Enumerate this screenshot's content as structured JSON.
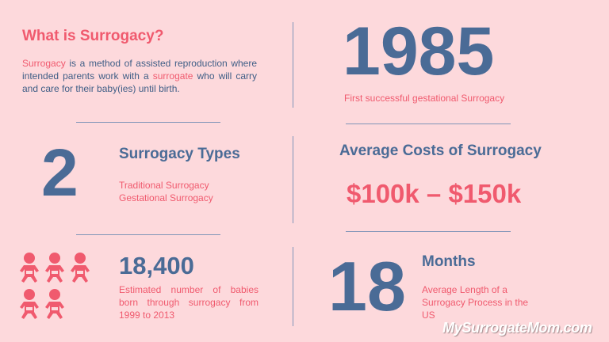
{
  "surrogacy": {
    "heading": "What is Surrogacy?",
    "lead_word": "Surrogacy",
    "text_part1": " is a method of assisted reproduction where intended parents work with a ",
    "highlight_word": "surrogate",
    "text_part2": " who will carry and care for their baby(ies) until birth."
  },
  "year_stat": {
    "value": "1985",
    "caption": "First successful gestational Surrogacy"
  },
  "types_stat": {
    "value": "2",
    "heading": "Surrogacy Types",
    "items": [
      "Traditional Surrogacy",
      "Gestational Surrogacy"
    ]
  },
  "cost_stat": {
    "heading": "Average Costs of Surrogacy",
    "value": "$100k – $150k"
  },
  "babies_stat": {
    "value": "18,400",
    "caption": "Estimated number of babies born through surrogacy from 1999 to 2013",
    "icon": "baby-icon",
    "icon_count": 5
  },
  "months_stat": {
    "value": "18",
    "unit": "Months",
    "caption": "Average Length of a Surrogacy Process in the US"
  },
  "watermark": "MySurrogateMom.com",
  "colors": {
    "background": "#fdd9dc",
    "accent_pink": "#f05a6e",
    "accent_blue": "#4a6b96"
  }
}
